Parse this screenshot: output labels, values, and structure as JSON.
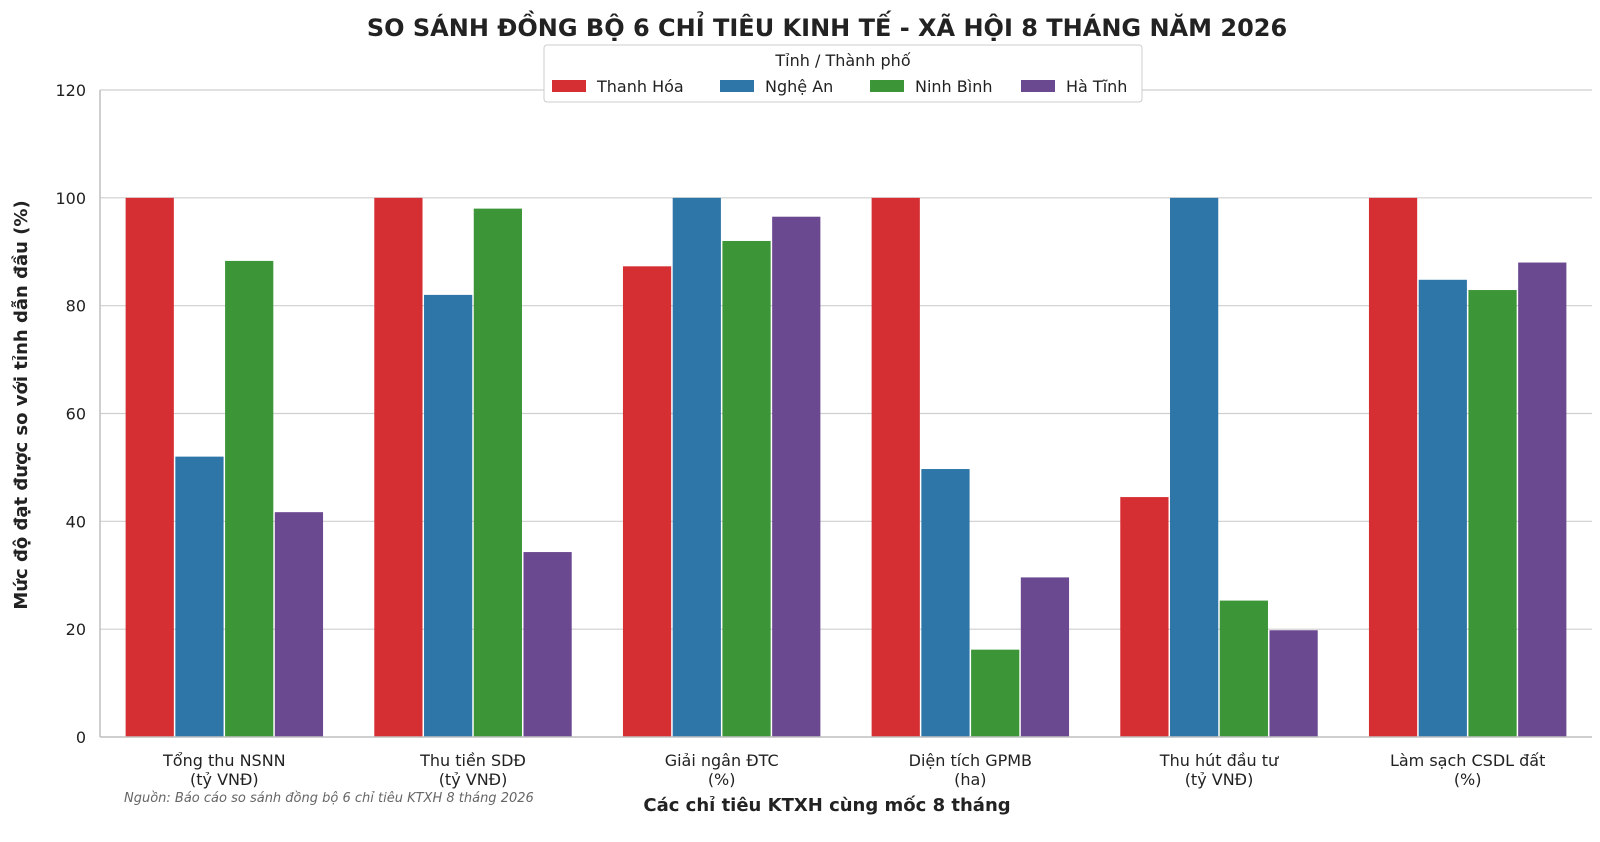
{
  "chart_data": {
    "type": "bar",
    "title": "SO SÁNH ĐỒNG BỘ 6 CHỈ TIÊU KINH TẾ - XÃ HỘI 8 THÁNG NĂM 2026",
    "xlabel": "Các chỉ tiêu KTXH cùng mốc 8 tháng",
    "ylabel": "Mức độ đạt được so với tỉnh dẫn đầu (%)",
    "ylim": [
      0,
      120
    ],
    "yticks": [
      "0",
      "20",
      "40",
      "60",
      "80",
      "100",
      "120"
    ],
    "grid": true,
    "legend_position": "top-center",
    "legend_title": "Tỉnh / Thành phố",
    "source": "Nguồn: Báo cáo so sánh đồng bộ 6 chỉ tiêu KTXH 8 tháng 2026",
    "categories": [
      {
        "line1": "Tổng thu NSNN",
        "line2": "(tỷ VNĐ)"
      },
      {
        "line1": "Thu tiền SDĐ",
        "line2": "(tỷ VNĐ)"
      },
      {
        "line1": "Giải ngân ĐTC",
        "line2": "(%)"
      },
      {
        "line1": "Diện tích GPMB",
        "line2": "(ha)"
      },
      {
        "line1": "Thu hút đầu tư",
        "line2": "(tỷ VNĐ)"
      },
      {
        "line1": "Làm sạch CSDL đất",
        "line2": "(%)"
      }
    ],
    "series": [
      {
        "name": "Thanh Hóa",
        "color": "#d62f33",
        "values": [
          100,
          100,
          87.3,
          100,
          44.5,
          100
        ]
      },
      {
        "name": "Nghệ An",
        "color": "#2e76a8",
        "values": [
          52,
          82,
          100,
          49.7,
          100,
          84.8
        ]
      },
      {
        "name": "Ninh Bình",
        "color": "#3c9638",
        "values": [
          88.3,
          98,
          92,
          16.2,
          25.3,
          82.9
        ]
      },
      {
        "name": "Hà Tĩnh",
        "color": "#6b4990",
        "values": [
          41.7,
          34.3,
          96.5,
          29.6,
          19.8,
          88
        ]
      }
    ]
  }
}
